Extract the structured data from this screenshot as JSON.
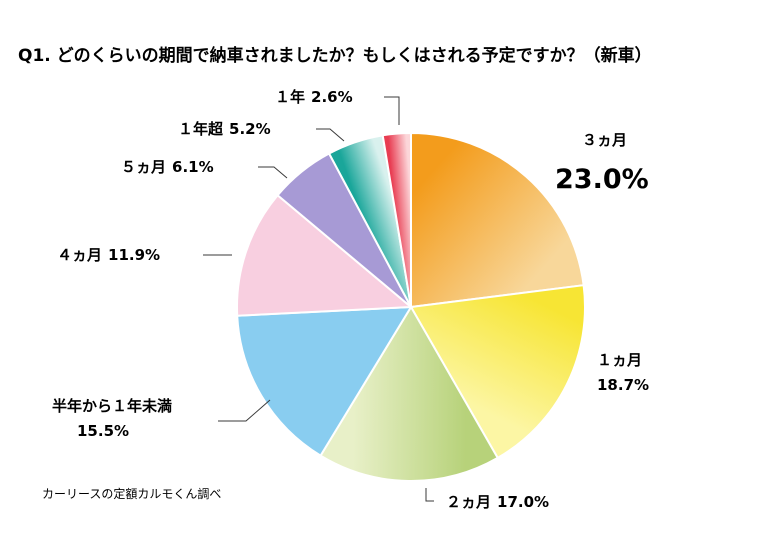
{
  "chart_data": {
    "type": "pie",
    "title": "Q1. どのくらいの期間で納車されましたか？もしくはされる予定ですか？（新車）",
    "source_note": "カーリースの定額カルモくん調べ",
    "slices": [
      {
        "label": "３ヵ月",
        "value": 23.0,
        "value_text": "23.0%",
        "color": "#f39c1c",
        "color_light": "#f8d79a"
      },
      {
        "label": "１ヵ月",
        "value": 18.7,
        "value_text": "18.7%",
        "color": "#f7e534",
        "color_light": "#fcf6a4"
      },
      {
        "label": "２ヵ月",
        "value": 17.0,
        "value_text": "17.0%",
        "color": "#b7d27a",
        "color_light": "#e8f0c8"
      },
      {
        "label": "半年から１年未満",
        "value": 15.5,
        "value_text": "15.5%",
        "color": "#89cdf0",
        "color_light": "#89cdf0"
      },
      {
        "label": "４ヵ月",
        "value": 11.9,
        "value_text": "11.9%",
        "color": "#f8cfe0",
        "color_light": "#f8cfe0"
      },
      {
        "label": "５ヵ月",
        "value": 6.1,
        "value_text": "6.1%",
        "color": "#a79ad5",
        "color_light": "#a79ad5"
      },
      {
        "label": "１年超",
        "value": 5.2,
        "value_text": "5.2%",
        "color": "#1aa69a",
        "color_light": "#d9f1ee"
      },
      {
        "label": "１年",
        "value": 2.6,
        "value_text": "2.6%",
        "color": "#e83d52",
        "color_light": "#fcd6d9"
      }
    ]
  }
}
